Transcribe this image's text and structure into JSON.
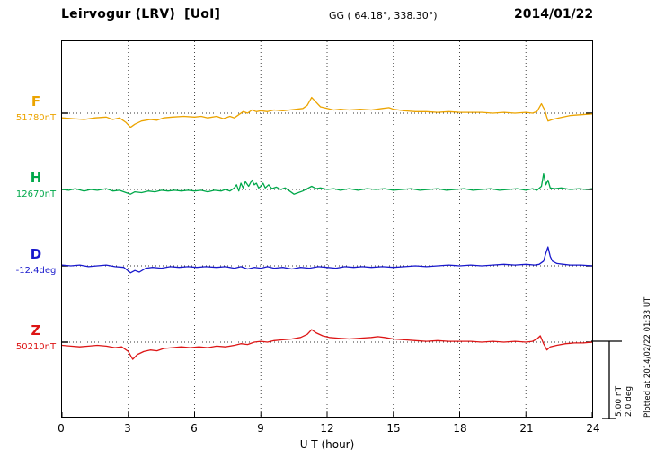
{
  "header": {
    "title": "Leirvogur (LRV)  [UoI]",
    "geo_coords": "GG ( 64.18°, 338.30°)",
    "date": "2014/01/22"
  },
  "x_axis": {
    "title": "U T (hour)",
    "tick_labels": [
      "0",
      "3",
      "6",
      "9",
      "12",
      "15",
      "18",
      "21",
      "24"
    ]
  },
  "series_labels": [
    {
      "letter": "F",
      "value": "51780nT",
      "color": "#eca400"
    },
    {
      "letter": "H",
      "value": "12670nT",
      "color": "#00a84a"
    },
    {
      "letter": "D",
      "value": "-12.4deg",
      "color": "#1818cc"
    },
    {
      "letter": "Z",
      "value": "50210nT",
      "color": "#dd1515"
    }
  ],
  "scale_bar": {
    "label_nt": "5.00 nT",
    "label_deg": "2.0 deg"
  },
  "plot_note": "Plotted at 2014/02/22 01:33 UT",
  "chart_data": {
    "type": "line",
    "title": "Leirvogur (LRV) magnetogram",
    "xlabel": "U T (hour)",
    "x_range": [
      0,
      24
    ],
    "x_ticks": [
      0,
      3,
      6,
      9,
      12,
      15,
      18,
      21,
      24
    ],
    "grid": "vertical dotted lines every 3 hours; dotted horizontal baseline per trace; legend none",
    "scale_note": "right-side scale bar = 5.00 nT / 2.0 deg",
    "series": [
      {
        "name": "F",
        "unit": "nT offset from 51780 nT",
        "base_value": 51780,
        "color": "#eca400",
        "points": [
          [
            0,
            -3
          ],
          [
            0.5,
            -3.5
          ],
          [
            1,
            -4
          ],
          [
            1.5,
            -3
          ],
          [
            2,
            -2.5
          ],
          [
            2.3,
            -4
          ],
          [
            2.6,
            -3
          ],
          [
            2.9,
            -6
          ],
          [
            3.1,
            -9
          ],
          [
            3.3,
            -7
          ],
          [
            3.6,
            -5
          ],
          [
            4,
            -4
          ],
          [
            4.3,
            -4.5
          ],
          [
            4.6,
            -3
          ],
          [
            5,
            -2.5
          ],
          [
            5.5,
            -2
          ],
          [
            6,
            -2.5
          ],
          [
            6.3,
            -2
          ],
          [
            6.6,
            -3
          ],
          [
            7,
            -2
          ],
          [
            7.3,
            -3.5
          ],
          [
            7.6,
            -2
          ],
          [
            7.8,
            -3
          ],
          [
            8,
            -1
          ],
          [
            8.2,
            1
          ],
          [
            8.4,
            0
          ],
          [
            8.6,
            2
          ],
          [
            8.8,
            1
          ],
          [
            9,
            1.5
          ],
          [
            9.3,
            1
          ],
          [
            9.6,
            2
          ],
          [
            10,
            1.5
          ],
          [
            10.3,
            2
          ],
          [
            10.6,
            2.5
          ],
          [
            10.9,
            3
          ],
          [
            11.1,
            5
          ],
          [
            11.3,
            10
          ],
          [
            11.5,
            7
          ],
          [
            11.7,
            4
          ],
          [
            12,
            3
          ],
          [
            12.3,
            2
          ],
          [
            12.6,
            2.5
          ],
          [
            13,
            2
          ],
          [
            13.5,
            2.5
          ],
          [
            14,
            2
          ],
          [
            14.5,
            3
          ],
          [
            14.8,
            3.5
          ],
          [
            15,
            2.5
          ],
          [
            15.5,
            1.5
          ],
          [
            16,
            1
          ],
          [
            16.5,
            1
          ],
          [
            17,
            0.5
          ],
          [
            17.5,
            1
          ],
          [
            18,
            0.5
          ],
          [
            18.5,
            0.5
          ],
          [
            19,
            0.5
          ],
          [
            19.5,
            0
          ],
          [
            20,
            0.5
          ],
          [
            20.5,
            0
          ],
          [
            21,
            0.5
          ],
          [
            21.3,
            0
          ],
          [
            21.5,
            1
          ],
          [
            21.7,
            6
          ],
          [
            21.85,
            2
          ],
          [
            22,
            -5
          ],
          [
            22.2,
            -4
          ],
          [
            22.5,
            -3
          ],
          [
            23,
            -1.5
          ],
          [
            23.5,
            -1
          ],
          [
            24,
            -0.5
          ]
        ]
      },
      {
        "name": "H",
        "unit": "nT offset from 12670 nT",
        "base_value": 12670,
        "color": "#00a84a",
        "points": [
          [
            0,
            0
          ],
          [
            0.3,
            -0.5
          ],
          [
            0.6,
            0.5
          ],
          [
            1,
            -1
          ],
          [
            1.3,
            0
          ],
          [
            1.6,
            -0.5
          ],
          [
            2,
            0.5
          ],
          [
            2.3,
            -1
          ],
          [
            2.6,
            -0.5
          ],
          [
            2.9,
            -2
          ],
          [
            3.1,
            -3
          ],
          [
            3.3,
            -1.5
          ],
          [
            3.6,
            -2
          ],
          [
            3.9,
            -1
          ],
          [
            4.2,
            -1.5
          ],
          [
            4.5,
            -0.5
          ],
          [
            4.8,
            -1
          ],
          [
            5.1,
            -0.5
          ],
          [
            5.4,
            -1
          ],
          [
            5.7,
            -0.5
          ],
          [
            6,
            -1
          ],
          [
            6.3,
            -0.5
          ],
          [
            6.6,
            -1.5
          ],
          [
            6.9,
            -0.5
          ],
          [
            7.2,
            -1
          ],
          [
            7.4,
            0
          ],
          [
            7.6,
            -1
          ],
          [
            7.8,
            1
          ],
          [
            7.9,
            3
          ],
          [
            8,
            -1
          ],
          [
            8.1,
            4
          ],
          [
            8.2,
            1
          ],
          [
            8.3,
            5
          ],
          [
            8.45,
            2
          ],
          [
            8.6,
            6
          ],
          [
            8.7,
            3
          ],
          [
            8.8,
            4
          ],
          [
            8.9,
            1
          ],
          [
            9,
            2
          ],
          [
            9.1,
            4
          ],
          [
            9.2,
            1
          ],
          [
            9.35,
            3
          ],
          [
            9.5,
            0.5
          ],
          [
            9.7,
            1.5
          ],
          [
            9.9,
            0
          ],
          [
            10.1,
            1
          ],
          [
            10.3,
            -1
          ],
          [
            10.5,
            -3
          ],
          [
            10.7,
            -2
          ],
          [
            10.9,
            -1
          ],
          [
            11.1,
            0.5
          ],
          [
            11.3,
            2
          ],
          [
            11.5,
            0.5
          ],
          [
            11.7,
            1
          ],
          [
            12,
            0
          ],
          [
            12.3,
            0.5
          ],
          [
            12.6,
            -0.5
          ],
          [
            13,
            0.5
          ],
          [
            13.4,
            -0.5
          ],
          [
            13.8,
            0.5
          ],
          [
            14.2,
            0
          ],
          [
            14.6,
            0.5
          ],
          [
            15,
            -0.5
          ],
          [
            15.4,
            0
          ],
          [
            15.8,
            0.5
          ],
          [
            16.2,
            -0.5
          ],
          [
            16.6,
            0
          ],
          [
            17,
            0.5
          ],
          [
            17.4,
            -0.5
          ],
          [
            17.8,
            0
          ],
          [
            18.2,
            0.5
          ],
          [
            18.6,
            -0.5
          ],
          [
            19,
            0
          ],
          [
            19.4,
            0.5
          ],
          [
            19.8,
            -0.5
          ],
          [
            20.2,
            0
          ],
          [
            20.6,
            0.5
          ],
          [
            21,
            -0.5
          ],
          [
            21.3,
            0.5
          ],
          [
            21.5,
            -0.5
          ],
          [
            21.7,
            2
          ],
          [
            21.8,
            10
          ],
          [
            21.9,
            3
          ],
          [
            22,
            6
          ],
          [
            22.1,
            1
          ],
          [
            22.3,
            0.5
          ],
          [
            22.6,
            1
          ],
          [
            23,
            0
          ],
          [
            23.4,
            0.5
          ],
          [
            23.7,
            0
          ],
          [
            24,
            0.5
          ]
        ]
      },
      {
        "name": "D",
        "unit": "declination offset (scaled), base -12.4 deg",
        "base_value": -12.4,
        "color": "#1818cc",
        "points": [
          [
            0,
            0.5
          ],
          [
            0.4,
            0
          ],
          [
            0.8,
            0.5
          ],
          [
            1.2,
            -0.5
          ],
          [
            1.6,
            0
          ],
          [
            2,
            0.5
          ],
          [
            2.4,
            -0.5
          ],
          [
            2.8,
            -1
          ],
          [
            3.1,
            -4.5
          ],
          [
            3.3,
            -3
          ],
          [
            3.5,
            -4
          ],
          [
            3.8,
            -1.5
          ],
          [
            4.1,
            -1
          ],
          [
            4.5,
            -1.5
          ],
          [
            4.9,
            -0.5
          ],
          [
            5.3,
            -1
          ],
          [
            5.7,
            -0.5
          ],
          [
            6.1,
            -1
          ],
          [
            6.5,
            -0.5
          ],
          [
            7,
            -1
          ],
          [
            7.4,
            -0.5
          ],
          [
            7.8,
            -1.5
          ],
          [
            8.1,
            -0.5
          ],
          [
            8.4,
            -2
          ],
          [
            8.7,
            -1
          ],
          [
            9,
            -1.5
          ],
          [
            9.3,
            -0.5
          ],
          [
            9.6,
            -1.5
          ],
          [
            10,
            -1
          ],
          [
            10.4,
            -2
          ],
          [
            10.8,
            -1
          ],
          [
            11.2,
            -1.5
          ],
          [
            11.6,
            -0.5
          ],
          [
            12,
            -1
          ],
          [
            12.4,
            -1.5
          ],
          [
            12.8,
            -0.5
          ],
          [
            13.2,
            -1
          ],
          [
            13.6,
            -0.5
          ],
          [
            14,
            -1
          ],
          [
            14.5,
            -0.5
          ],
          [
            15,
            -1
          ],
          [
            15.5,
            -0.5
          ],
          [
            16,
            0
          ],
          [
            16.5,
            -0.5
          ],
          [
            17,
            0
          ],
          [
            17.5,
            0.5
          ],
          [
            18,
            0
          ],
          [
            18.5,
            0.5
          ],
          [
            19,
            0
          ],
          [
            19.5,
            0.5
          ],
          [
            20,
            1
          ],
          [
            20.5,
            0.5
          ],
          [
            21,
            1
          ],
          [
            21.4,
            0.5
          ],
          [
            21.6,
            1
          ],
          [
            21.8,
            3
          ],
          [
            21.9,
            8
          ],
          [
            22,
            12
          ],
          [
            22.1,
            6
          ],
          [
            22.2,
            3
          ],
          [
            22.4,
            1.5
          ],
          [
            22.7,
            1
          ],
          [
            23,
            0.5
          ],
          [
            23.5,
            0.5
          ],
          [
            24,
            0
          ]
        ]
      },
      {
        "name": "Z",
        "unit": "nT offset from 50210 nT",
        "base_value": 50210,
        "color": "#dd1515",
        "points": [
          [
            0,
            -2
          ],
          [
            0.4,
            -2.5
          ],
          [
            0.8,
            -3
          ],
          [
            1.2,
            -2.5
          ],
          [
            1.6,
            -2
          ],
          [
            2,
            -2.5
          ],
          [
            2.4,
            -3.5
          ],
          [
            2.7,
            -3
          ],
          [
            3,
            -6
          ],
          [
            3.2,
            -11
          ],
          [
            3.4,
            -8
          ],
          [
            3.7,
            -6
          ],
          [
            4,
            -5
          ],
          [
            4.3,
            -5.5
          ],
          [
            4.6,
            -4
          ],
          [
            5,
            -3.5
          ],
          [
            5.4,
            -3
          ],
          [
            5.8,
            -3.5
          ],
          [
            6.2,
            -3
          ],
          [
            6.6,
            -3.5
          ],
          [
            7,
            -2.5
          ],
          [
            7.4,
            -3
          ],
          [
            7.8,
            -2
          ],
          [
            8.1,
            -1
          ],
          [
            8.4,
            -1.5
          ],
          [
            8.7,
            0
          ],
          [
            9,
            0.5
          ],
          [
            9.3,
            0
          ],
          [
            9.6,
            1
          ],
          [
            10,
            1.5
          ],
          [
            10.4,
            2
          ],
          [
            10.8,
            3
          ],
          [
            11.1,
            5
          ],
          [
            11.3,
            8
          ],
          [
            11.5,
            6
          ],
          [
            11.8,
            4
          ],
          [
            12.1,
            3
          ],
          [
            12.5,
            2.5
          ],
          [
            13,
            2
          ],
          [
            13.5,
            2.5
          ],
          [
            14,
            3
          ],
          [
            14.3,
            3.5
          ],
          [
            14.6,
            3
          ],
          [
            15,
            2
          ],
          [
            15.5,
            1.5
          ],
          [
            16,
            1
          ],
          [
            16.5,
            0.5
          ],
          [
            17,
            1
          ],
          [
            17.5,
            0.5
          ],
          [
            18,
            0.5
          ],
          [
            18.5,
            0.5
          ],
          [
            19,
            0
          ],
          [
            19.5,
            0.5
          ],
          [
            20,
            0
          ],
          [
            20.5,
            0.5
          ],
          [
            21,
            0
          ],
          [
            21.3,
            0.5
          ],
          [
            21.5,
            2
          ],
          [
            21.65,
            4
          ],
          [
            21.8,
            -1
          ],
          [
            21.95,
            -5
          ],
          [
            22.1,
            -3
          ],
          [
            22.4,
            -2
          ],
          [
            22.8,
            -1
          ],
          [
            23.2,
            -0.5
          ],
          [
            23.6,
            -0.5
          ],
          [
            24,
            0
          ]
        ]
      }
    ]
  }
}
